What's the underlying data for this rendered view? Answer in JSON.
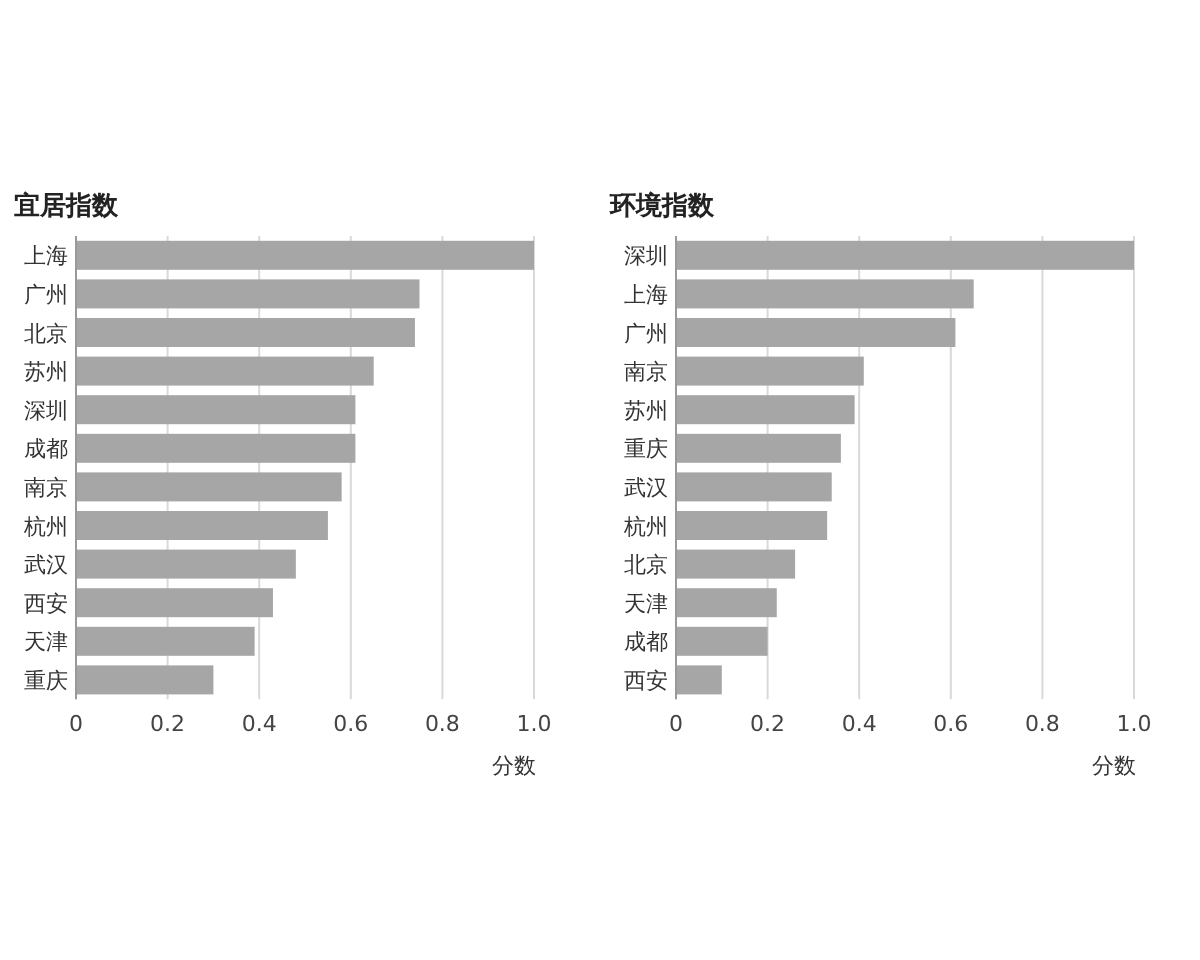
{
  "chart_data": [
    {
      "type": "bar",
      "orientation": "horizontal",
      "title": "宜居指数",
      "xlabel": "分数",
      "categories": [
        "上海",
        "广州",
        "北京",
        "苏州",
        "深圳",
        "成都",
        "南京",
        "杭州",
        "武汉",
        "西安",
        "天津",
        "重庆"
      ],
      "values": [
        1.0,
        0.75,
        0.74,
        0.65,
        0.61,
        0.61,
        0.58,
        0.55,
        0.48,
        0.43,
        0.39,
        0.3
      ],
      "color": "#a6a6a6",
      "xlim": [
        0,
        1.0
      ],
      "xticks": [
        0,
        0.2,
        0.4,
        0.6,
        0.8,
        {
          "value": 1.0,
          "label": "1.0"
        }
      ],
      "grid": "x"
    },
    {
      "type": "bar",
      "orientation": "horizontal",
      "title": "环境指数",
      "xlabel": "分数",
      "categories": [
        "深圳",
        "上海",
        "广州",
        "南京",
        "苏州",
        "重庆",
        "武汉",
        "杭州",
        "北京",
        "天津",
        "成都",
        "西安"
      ],
      "values": [
        1.0,
        0.65,
        0.61,
        0.41,
        0.39,
        0.36,
        0.34,
        0.33,
        0.26,
        0.22,
        0.2,
        0.1
      ],
      "color": "#a6a6a6",
      "xlim": [
        0,
        1.0
      ],
      "xticks": [
        0,
        0.2,
        0.4,
        0.6,
        0.8,
        {
          "value": 1.0,
          "label": "1.0"
        }
      ],
      "grid": "x"
    }
  ]
}
